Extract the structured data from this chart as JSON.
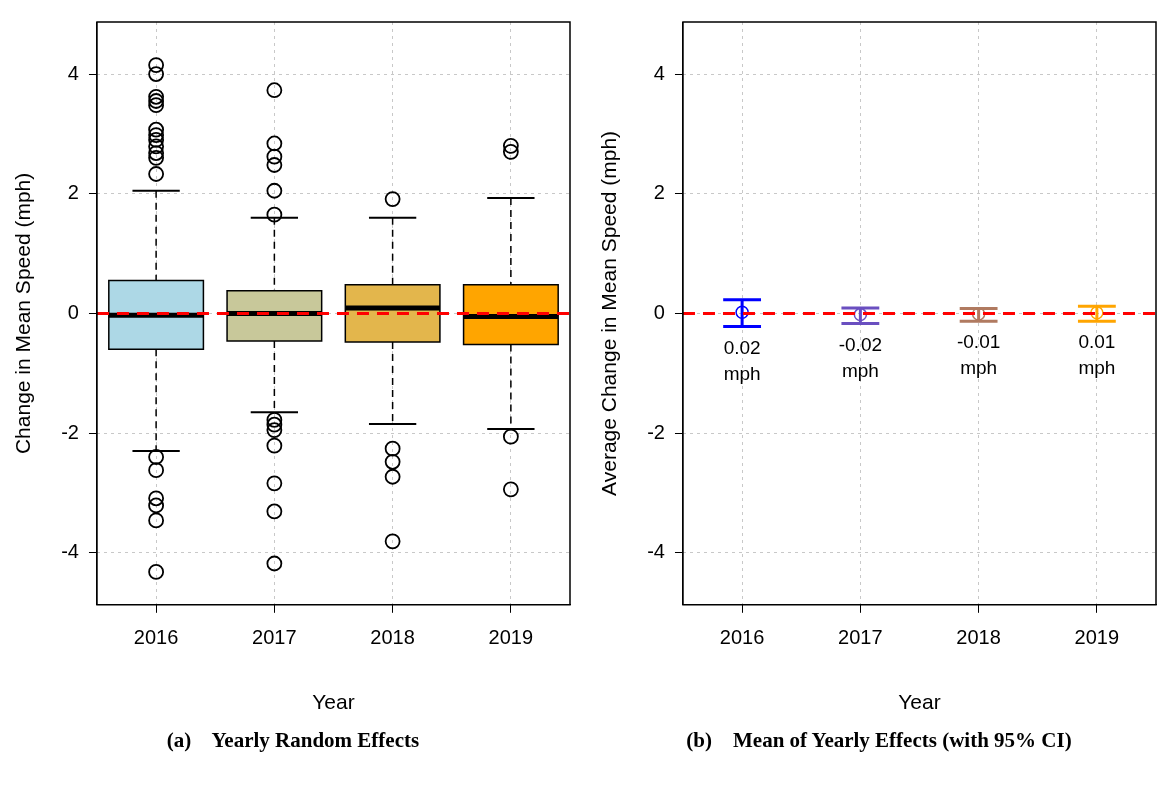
{
  "chart_data": [
    {
      "type": "box",
      "title": "(a)    Yearly Random Effects",
      "xlabel": "Year",
      "ylabel": "Change in Mean Speed (mph)",
      "categories": [
        "2016",
        "2017",
        "2018",
        "2019"
      ],
      "colors": [
        "#add8e6",
        "#c8c89a",
        "#e3b64c",
        "#ffa500"
      ],
      "boxes": [
        {
          "low": -2.3,
          "q1": -0.6,
          "median": -0.03,
          "q3": 0.55,
          "high": 2.05,
          "outliers": [
            4.15,
            4.0,
            3.62,
            3.55,
            3.48,
            3.07,
            2.98,
            2.9,
            2.79,
            2.68,
            2.6,
            2.33,
            -2.4,
            -2.62,
            -3.09,
            -3.21,
            -3.46,
            -4.32
          ]
        },
        {
          "low": -1.65,
          "q1": -0.46,
          "median": 0.0,
          "q3": 0.38,
          "high": 1.6,
          "outliers": [
            3.73,
            2.84,
            2.62,
            2.48,
            2.05,
            1.65,
            -1.78,
            -1.86,
            -1.95,
            -2.21,
            -2.84,
            -3.31,
            -4.18
          ]
        },
        {
          "low": -1.85,
          "q1": -0.48,
          "median": 0.09,
          "q3": 0.48,
          "high": 1.6,
          "outliers": [
            1.91,
            -2.26,
            -2.48,
            -2.73,
            -3.81
          ]
        },
        {
          "low": -1.93,
          "q1": -0.52,
          "median": -0.05,
          "q3": 0.48,
          "high": 1.93,
          "outliers": [
            2.8,
            2.7,
            -2.06,
            -2.94
          ]
        }
      ],
      "ylim": [
        -4.87,
        4.87
      ],
      "yticks": [
        -4,
        -2,
        0,
        2,
        4
      ],
      "grid": true,
      "ref_lines": [
        {
          "axis": "y",
          "value": 0,
          "color": "#ff0000",
          "line_style": "dashed"
        }
      ]
    },
    {
      "type": "scatter",
      "title": "(b)    Mean of Yearly Effects (with 95% CI)",
      "xlabel": "Year",
      "ylabel": "Average Change in Mean Speed (mph)",
      "categories": [
        "2016",
        "2017",
        "2018",
        "2019"
      ],
      "values": [
        0.02,
        -0.02,
        -0.01,
        0.01
      ],
      "errors": [
        [
          -0.22,
          0.23
        ],
        [
          -0.17,
          0.09
        ],
        [
          -0.13,
          0.08
        ],
        [
          -0.13,
          0.12
        ]
      ],
      "colors": [
        "#0000ff",
        "#6a4fc0",
        "#b07a60",
        "#ffa500"
      ],
      "value_labels": [
        "0.02 mph",
        "-0.02 mph",
        "-0.01 mph",
        "0.01 mph"
      ],
      "marker": "circle",
      "ylim": [
        -4.87,
        4.87
      ],
      "yticks": [
        -4,
        -2,
        0,
        2,
        4
      ],
      "grid": true,
      "ref_lines": [
        {
          "axis": "y",
          "value": 0,
          "color": "#ff0000",
          "line_style": "dashed"
        }
      ]
    }
  ]
}
